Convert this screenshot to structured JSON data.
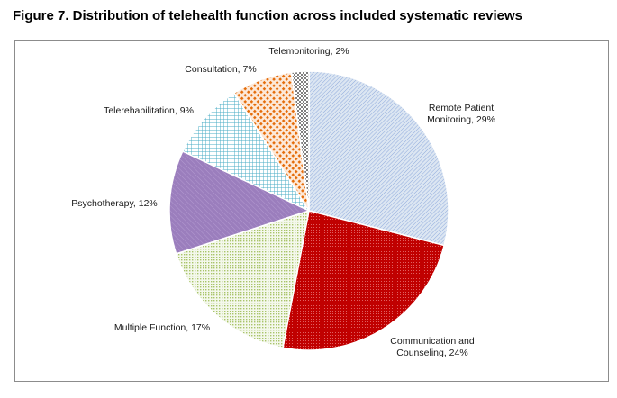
{
  "figure": {
    "title": "Figure 7. Distribution of telehealth function across included systematic reviews"
  },
  "chart_data": {
    "type": "pie",
    "title": "",
    "start_angle_deg": 0,
    "direction": "clockwise",
    "slices": [
      {
        "name": "Remote Patient Monitoring",
        "value": 29,
        "label_lines": [
          "Remote Patient",
          "Monitoring, 29%"
        ],
        "fill": "#dce6f2",
        "stroke": "#8faadc",
        "pattern": "diagonal"
      },
      {
        "name": "Communication and Counseling",
        "value": 24,
        "label_lines": [
          "Communication and",
          "Counseling, 24%"
        ],
        "fill": "#c00000",
        "stroke": "#7f0000",
        "pattern": "dots"
      },
      {
        "name": "Multiple Function",
        "value": 17,
        "label_lines": [
          "Multiple Function, 17%"
        ],
        "fill": "#ebf1de",
        "stroke": "#9bbb59",
        "pattern": "dots-light"
      },
      {
        "name": "Psychotherapy",
        "value": 12,
        "label_lines": [
          "Psychotherapy, 12%"
        ],
        "fill": "#9b7ebd",
        "stroke": "#7a5ca0",
        "pattern": "lines"
      },
      {
        "name": "Telerehabilitation",
        "value": 9,
        "label_lines": [
          "Telerehabilitation, 9%"
        ],
        "fill": "#ffffff",
        "stroke": "#4bacc6",
        "pattern": "grid"
      },
      {
        "name": "Consultation",
        "value": 7,
        "label_lines": [
          "Consultation, 7%"
        ],
        "fill": "#fde9d9",
        "stroke": "#e46c0a",
        "pattern": "diamonds"
      },
      {
        "name": "Telemonitoring",
        "value": 2,
        "label_lines": [
          "Telemonitoring, 2%"
        ],
        "fill": "#ffffff",
        "stroke": "#7f7f7f",
        "pattern": "checker"
      }
    ]
  }
}
